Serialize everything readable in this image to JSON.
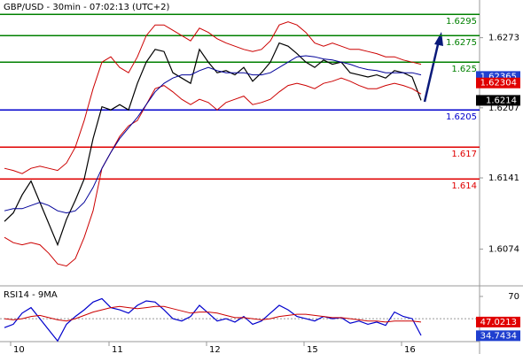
{
  "chart_data": [
    {
      "type": "line",
      "title": "GBP/USD - 30min - 07:02:13 (UTC+2)",
      "x": [
        0,
        1,
        2,
        3,
        4,
        5,
        6,
        7,
        8,
        9,
        10,
        11,
        12,
        13,
        14,
        15,
        16,
        17,
        18,
        19,
        20,
        21,
        22,
        23,
        24,
        25,
        26,
        27,
        28,
        29,
        30,
        31,
        32,
        33,
        34,
        35,
        36,
        37,
        38,
        39,
        40,
        41,
        42,
        43,
        44,
        45,
        46,
        47
      ],
      "xlim": [
        -0.5,
        53.6
      ],
      "ylim": [
        1.60402,
        1.63085
      ],
      "yticks": [
        1.6074,
        1.6141,
        1.6207,
        1.6273
      ],
      "series": [
        {
          "color": "#000000",
          "values": [
            1.61,
            1.6108,
            1.6125,
            1.6138,
            1.6118,
            1.6098,
            1.6078,
            1.6102,
            1.612,
            1.614,
            1.6178,
            1.6208,
            1.6205,
            1.621,
            1.6205,
            1.623,
            1.625,
            1.6262,
            1.626,
            1.624,
            1.6235,
            1.623,
            1.6262,
            1.625,
            1.624,
            1.6242,
            1.6238,
            1.6245,
            1.6232,
            1.624,
            1.625,
            1.6268,
            1.6265,
            1.6258,
            1.625,
            1.6245,
            1.6252,
            1.6248,
            1.625,
            1.624,
            1.6238,
            1.6236,
            1.6238,
            1.6235,
            1.6242,
            1.624,
            1.6236,
            1.6214
          ]
        },
        {
          "color": "#cc0000",
          "values": [
            1.615,
            1.6148,
            1.6145,
            1.615,
            1.6152,
            1.615,
            1.6148,
            1.6155,
            1.617,
            1.6195,
            1.6225,
            1.625,
            1.6255,
            1.6245,
            1.624,
            1.6255,
            1.6275,
            1.6285,
            1.6285,
            1.628,
            1.6275,
            1.627,
            1.6282,
            1.6278,
            1.6272,
            1.6268,
            1.6265,
            1.6262,
            1.626,
            1.6262,
            1.627,
            1.6285,
            1.6288,
            1.6285,
            1.6278,
            1.6268,
            1.6265,
            1.6268,
            1.6265,
            1.6262,
            1.6262,
            1.626,
            1.6258,
            1.6255,
            1.6255,
            1.6252,
            1.625,
            1.6248
          ]
        },
        {
          "color": "#cc0000",
          "values": [
            1.6085,
            1.608,
            1.6078,
            1.608,
            1.6078,
            1.607,
            1.606,
            1.6058,
            1.6065,
            1.6085,
            1.611,
            1.615,
            1.6165,
            1.618,
            1.619,
            1.6195,
            1.621,
            1.6225,
            1.6228,
            1.6222,
            1.6215,
            1.621,
            1.6215,
            1.6212,
            1.6205,
            1.6212,
            1.6215,
            1.6218,
            1.621,
            1.6212,
            1.6215,
            1.6222,
            1.6228,
            1.623,
            1.6228,
            1.6225,
            1.623,
            1.6232,
            1.6235,
            1.6232,
            1.6228,
            1.6225,
            1.6225,
            1.6228,
            1.623,
            1.6228,
            1.6225,
            1.622
          ]
        },
        {
          "color": "#000099",
          "values": [
            1.611,
            1.6112,
            1.6112,
            1.6115,
            1.6118,
            1.6115,
            1.611,
            1.6108,
            1.611,
            1.6118,
            1.6132,
            1.615,
            1.6165,
            1.6178,
            1.6188,
            1.6198,
            1.621,
            1.6222,
            1.623,
            1.6235,
            1.6238,
            1.6238,
            1.6242,
            1.6245,
            1.6242,
            1.624,
            1.624,
            1.624,
            1.6238,
            1.6238,
            1.624,
            1.6245,
            1.625,
            1.6255,
            1.6256,
            1.6255,
            1.6253,
            1.6252,
            1.625,
            1.6248,
            1.6245,
            1.6243,
            1.6242,
            1.624,
            1.624,
            1.624,
            1.624,
            1.6238
          ]
        }
      ],
      "levels": [
        {
          "value": 1.6295,
          "color": "#008000"
        },
        {
          "value": 1.6275,
          "color": "#008000"
        },
        {
          "value": 1.625,
          "color": "#008000"
        },
        {
          "value": 1.6205,
          "color": "#0000cc"
        },
        {
          "value": 1.617,
          "color": "#e00000"
        },
        {
          "value": 1.614,
          "color": "#e00000"
        }
      ],
      "price_tags": [
        {
          "value": 1.62365,
          "color": "#1f3fcf",
          "text_color": "#ffffff"
        },
        {
          "value": 1.62304,
          "color": "#e00000",
          "text_color": "#ffffff"
        },
        {
          "value": 1.6214,
          "color": "#000000",
          "text_color": "#ffffff"
        }
      ]
    },
    {
      "type": "line",
      "title": "RSI14 - 9MA",
      "x": [
        0,
        1,
        2,
        3,
        4,
        5,
        6,
        7,
        8,
        9,
        10,
        11,
        12,
        13,
        14,
        15,
        16,
        17,
        18,
        19,
        20,
        21,
        22,
        23,
        24,
        25,
        26,
        27,
        28,
        29,
        30,
        31,
        32,
        33,
        34,
        35,
        36,
        37,
        38,
        39,
        40,
        41,
        42,
        43,
        44,
        45,
        46,
        47
      ],
      "xlim": [
        -0.5,
        53.6
      ],
      "xticks": [
        {
          "value": 0.7,
          "label": "10"
        },
        {
          "value": 11.8,
          "label": "11"
        },
        {
          "value": 22.8,
          "label": "12"
        },
        {
          "value": 33.8,
          "label": "15"
        },
        {
          "value": 44.8,
          "label": "16"
        }
      ],
      "ylim": [
        25.5,
        78.7
      ],
      "yticks": [
        70
      ],
      "hline": 50,
      "series": [
        {
          "color": "#0000cc",
          "values": [
            42,
            45,
            55,
            60,
            50,
            40,
            30,
            45,
            52,
            58,
            65,
            68,
            60,
            58,
            55,
            62,
            66,
            65,
            58,
            50,
            48,
            52,
            62,
            55,
            48,
            50,
            47,
            52,
            45,
            48,
            55,
            62,
            58,
            52,
            50,
            48,
            52,
            50,
            51,
            46,
            48,
            45,
            47,
            44,
            56,
            52,
            50,
            35
          ]
        },
        {
          "color": "#cc0000",
          "values": [
            50,
            49,
            50,
            52,
            53,
            51,
            49,
            48,
            50,
            53,
            56,
            58,
            60,
            61,
            60,
            59,
            60,
            61,
            61,
            59,
            57,
            55,
            56,
            56,
            55,
            53,
            51,
            51,
            50,
            49,
            50,
            52,
            53,
            54,
            54,
            53,
            52,
            51,
            51,
            50,
            49,
            48,
            48,
            47,
            48,
            48,
            48,
            47
          ]
        }
      ],
      "price_tags": [
        {
          "value": 47.0213,
          "color": "#e00000",
          "text_color": "#ffffff"
        },
        {
          "value": 34.7434,
          "color": "#1f3fcf",
          "text_color": "#ffffff"
        }
      ]
    }
  ]
}
